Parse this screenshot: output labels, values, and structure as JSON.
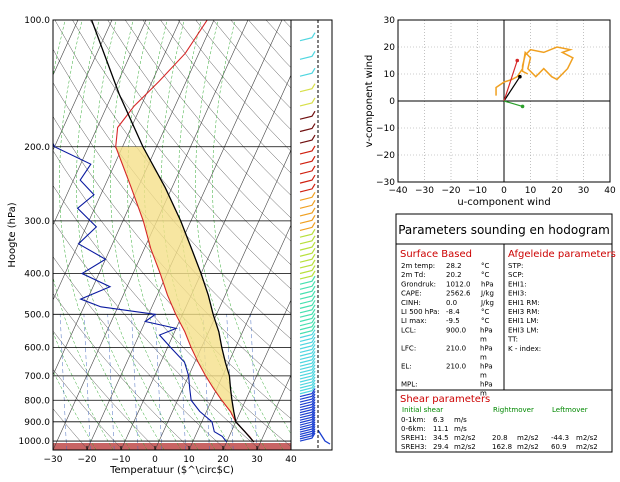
{
  "chart_data": [
    {
      "type": "skew-t",
      "xlabel": "Temperatuur ($^\\circ$C)",
      "ylabel": "Hoogte (hPa)",
      "xlim": [
        -30,
        40
      ],
      "xticks": [
        "−30",
        "−20",
        "−10",
        "0",
        "10",
        "20",
        "30",
        "40"
      ],
      "ylim_hpa": [
        1000,
        100
      ],
      "yticks": [
        {
          "p": 100,
          "label": "100.0"
        },
        {
          "p": 200,
          "label": "200.0"
        },
        {
          "p": 300,
          "label": "300.0"
        },
        {
          "p": 400,
          "label": "400.0"
        },
        {
          "p": 500,
          "label": "500.0"
        },
        {
          "p": 600,
          "label": "600.0"
        },
        {
          "p": 700,
          "label": "700.0"
        },
        {
          "p": 800,
          "label": "800.0"
        },
        {
          "p": 900,
          "label": "900.0"
        },
        {
          "p": 1000,
          "label": "1000.0"
        }
      ],
      "series": [
        {
          "role": "temperature",
          "color": "#d62728",
          "points": [
            [
              1005,
              28
            ],
            [
              975,
              26
            ],
            [
              950,
              24
            ],
            [
              925,
              22
            ],
            [
              900,
              20
            ],
            [
              850,
              17
            ],
            [
              800,
              13
            ],
            [
              750,
              9
            ],
            [
              700,
              5
            ],
            [
              650,
              1
            ],
            [
              600,
              -3
            ],
            [
              550,
              -7
            ],
            [
              500,
              -12
            ],
            [
              450,
              -17
            ],
            [
              400,
              -22
            ],
            [
              350,
              -28
            ],
            [
              300,
              -34
            ],
            [
              250,
              -42
            ],
            [
              200,
              -52
            ],
            [
              180,
              -54
            ],
            [
              160,
              -52
            ],
            [
              140,
              -48
            ],
            [
              120,
              -44
            ],
            [
              100,
              -42
            ]
          ]
        },
        {
          "role": "dewpoint",
          "color": "#0a1aa0",
          "points": [
            [
              1005,
              20
            ],
            [
              975,
              18
            ],
            [
              950,
              15
            ],
            [
              900,
              13
            ],
            [
              850,
              8
            ],
            [
              800,
              4
            ],
            [
              750,
              2
            ],
            [
              700,
              0
            ],
            [
              650,
              -3
            ],
            [
              600,
              -9
            ],
            [
              560,
              -14
            ],
            [
              540,
              -10
            ],
            [
              520,
              -20
            ],
            [
              500,
              -18
            ],
            [
              480,
              -35
            ],
            [
              460,
              -42
            ],
            [
              430,
              -35
            ],
            [
              400,
              -45
            ],
            [
              370,
              -40
            ],
            [
              340,
              -50
            ],
            [
              310,
              -47
            ],
            [
              280,
              -55
            ],
            [
              260,
              -52
            ],
            [
              240,
              -58
            ],
            [
              220,
              -57
            ],
            [
              200,
              -70
            ],
            [
              180,
              -75
            ],
            [
              160,
              -78
            ],
            [
              140,
              -80
            ],
            [
              120,
              -84
            ],
            [
              100,
              -88
            ]
          ]
        },
        {
          "role": "parcel",
          "color": "#000000",
          "points": [
            [
              1005,
              28
            ],
            [
              950,
              24
            ],
            [
              900,
              20
            ],
            [
              850,
              18
            ],
            [
              800,
              16
            ],
            [
              750,
              14
            ],
            [
              700,
              12
            ],
            [
              650,
              9
            ],
            [
              600,
              6
            ],
            [
              550,
              3
            ],
            [
              500,
              -1
            ],
            [
              450,
              -5
            ],
            [
              400,
              -10
            ],
            [
              350,
              -16
            ],
            [
              300,
              -23
            ],
            [
              250,
              -32
            ],
            [
              200,
              -44
            ],
            [
              150,
              -58
            ],
            [
              100,
              -76
            ]
          ]
        }
      ],
      "cape_fill": {
        "color": "#f5e08a"
      }
    },
    {
      "type": "scatter",
      "title": "",
      "xlabel": "u-component wind",
      "ylabel": "v-component wind",
      "xlim": [
        -40,
        40
      ],
      "ylim": [
        -30,
        30
      ],
      "xticks": [
        "−40",
        "−30",
        "−20",
        "−10",
        "0",
        "10",
        "20",
        "30",
        "40"
      ],
      "yticks": [
        "−30",
        "−20",
        "−10",
        "0",
        "10",
        "20",
        "30"
      ],
      "grid": true,
      "hodograph": [
        [
          -3,
          2
        ],
        [
          -3,
          5
        ],
        [
          0,
          7
        ],
        [
          3,
          8
        ],
        [
          5,
          9
        ],
        [
          7,
          12
        ],
        [
          8,
          18
        ],
        [
          10,
          16
        ],
        [
          9,
          12
        ],
        [
          12,
          9
        ],
        [
          15,
          12
        ],
        [
          18,
          9
        ],
        [
          20,
          8
        ],
        [
          22,
          10
        ],
        [
          24,
          12
        ],
        [
          26,
          16
        ],
        [
          22,
          18
        ],
        [
          25,
          19
        ],
        [
          20,
          20
        ],
        [
          15,
          18
        ],
        [
          10,
          19
        ],
        [
          8,
          17
        ],
        [
          7,
          13
        ],
        [
          7,
          11
        ],
        [
          9,
          10
        ]
      ],
      "vectors": [
        {
          "name": "storm-motion-right",
          "u": 6,
          "v": 9,
          "color": "#000000"
        },
        {
          "name": "shear-vector",
          "u": 5,
          "v": 15,
          "color": "#d62728"
        },
        {
          "name": "storm-motion-left",
          "u": 7,
          "v": -2,
          "color": "#2ca02c"
        }
      ]
    }
  ],
  "wind_barbs": {
    "colors": [
      "#4ad",
      "#9e6",
      "#fa3",
      "#c22",
      "#711"
    ]
  },
  "params": {
    "title": "Parameters sounding en hodogram",
    "surface_header": "Surface Based",
    "derived_header": "Afgeleide parameters",
    "surface_rows": [
      {
        "label": "2m temp:",
        "value": "28.2",
        "unit": "°C"
      },
      {
        "label": "2m Td:",
        "value": "20.2",
        "unit": "°C"
      },
      {
        "label": "Grondruk:",
        "value": "1012.0",
        "unit": "hPa"
      },
      {
        "label": "CAPE:",
        "value": "2562.6",
        "unit": "J/kg"
      },
      {
        "label": "CINH:",
        "value": "0.0",
        "unit": "J/kg"
      },
      {
        "label": "LI 500 hPa:",
        "value": "-8.4",
        "unit": "°C"
      },
      {
        "label": "LI max:",
        "value": "-9.5",
        "unit": "°C"
      },
      {
        "label": "LCL:",
        "value": "900.0",
        "unit": "hPa m"
      },
      {
        "label": "LFC:",
        "value": "210.0",
        "unit": "hPa m"
      },
      {
        "label": "EL:",
        "value": "210.0",
        "unit": "hPa m"
      },
      {
        "label": "MPL:",
        "value": "",
        "unit": "hPa m"
      }
    ],
    "derived_rows": [
      "STP:",
      "SCP:",
      "EHI1:",
      "EHI3:",
      "EHI1 RM:",
      "EHI3 RM:",
      "EHI1 LM:",
      "EHI3 LM:",
      "TT:",
      "K - index:"
    ],
    "shear_header": "Shear parameters",
    "shear_cols": [
      "Initial shear",
      "Rightmover",
      "Leftmover"
    ],
    "shear_rows": [
      {
        "label": "0-1km:",
        "initial": "6.3",
        "iu": "m/s",
        "right": "",
        "ru": "",
        "left": "",
        "lu": ""
      },
      {
        "label": "0-6km:",
        "initial": "11.1",
        "iu": "m/s",
        "right": "",
        "ru": "",
        "left": "",
        "lu": ""
      },
      {
        "label": "SREH1:",
        "initial": "34.5",
        "iu": "m2/s2",
        "right": "20.8",
        "ru": "m2/s2",
        "left": "-44.3",
        "lu": "m2/s2"
      },
      {
        "label": "SREH3:",
        "initial": "29.4",
        "iu": "m2/s2",
        "right": "162.8",
        "ru": "m2/s2",
        "left": "60.9",
        "lu": "m2/s2"
      }
    ]
  }
}
